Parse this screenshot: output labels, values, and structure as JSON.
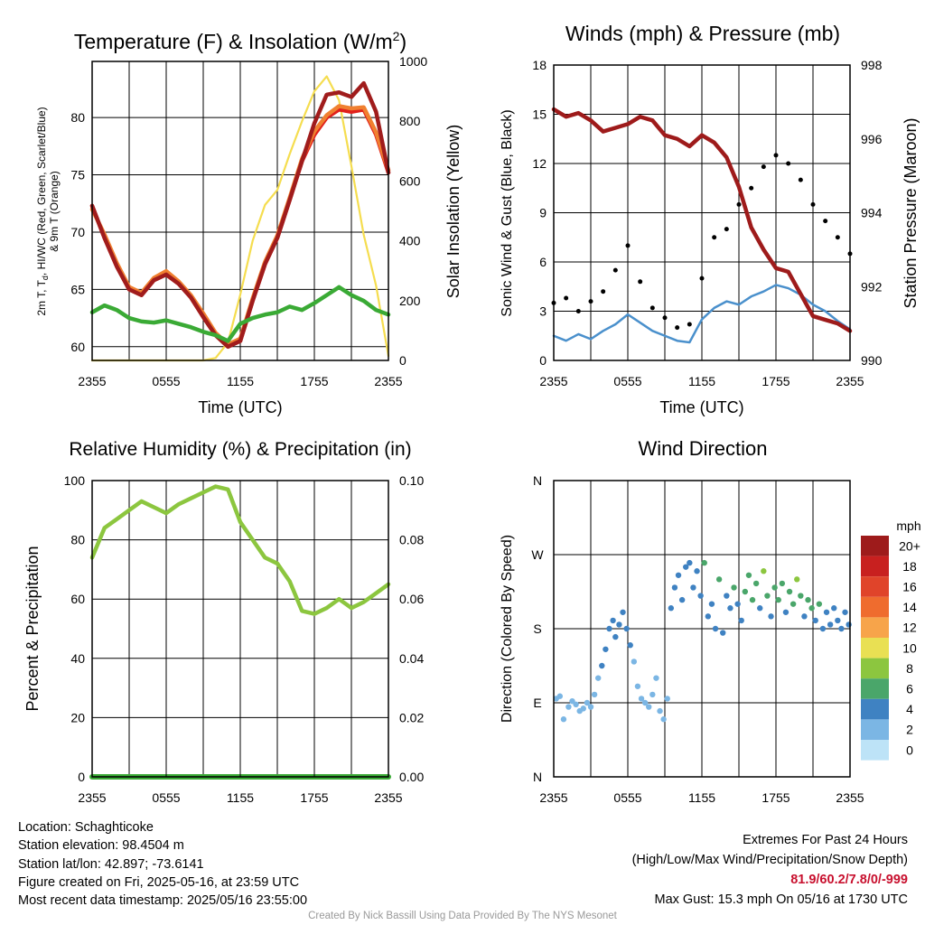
{
  "chart_data": [
    {
      "type": "line",
      "title": "Temperature (F) & Insolation (W/m²)",
      "xlabel": "Time (UTC)",
      "ylabel": "2m T, Td, HI/WC (Red, Green, Scarlet/Blue) & 9m T (Orange)",
      "ylabel_right": "Solar Insolation (Yellow)",
      "x_ticks": [
        "2355",
        "0555",
        "1155",
        "1755",
        "2355"
      ],
      "y_ticks": [
        60,
        65,
        70,
        75,
        80
      ],
      "y_right_ticks": [
        0,
        200,
        400,
        600,
        800,
        1000
      ],
      "ylim": [
        58.8,
        84.9
      ],
      "ylim_right": [
        0,
        1000
      ],
      "x": [
        0,
        1,
        2,
        3,
        4,
        5,
        6,
        7,
        8,
        9,
        10,
        11,
        12,
        13,
        14,
        15,
        16,
        17,
        18,
        19,
        20,
        21,
        22,
        23,
        24
      ],
      "series": [
        {
          "name": "2m T",
          "color": "#e0201b",
          "axis": "left",
          "values": [
            72.3,
            69.5,
            67,
            65,
            64.5,
            65.8,
            66.3,
            65.5,
            64.3,
            62.6,
            61,
            60,
            60.5,
            64,
            67.2,
            69.5,
            72.8,
            76.2,
            78.5,
            80,
            80.7,
            80.5,
            80.7,
            78.5,
            75.2
          ]
        },
        {
          "name": "9m T",
          "color": "#f08030",
          "axis": "left",
          "values": [
            72,
            69.8,
            67.3,
            65.2,
            64.7,
            66,
            66.6,
            65.7,
            64.5,
            62.9,
            61.2,
            60.2,
            60.7,
            64.2,
            67.4,
            69.7,
            73,
            76.4,
            78.8,
            80.2,
            81,
            80.8,
            80.9,
            78.7,
            75.4
          ]
        },
        {
          "name": "HI/WC",
          "color": "#a01c1c",
          "axis": "left",
          "values": [
            72.3,
            69.5,
            67,
            65,
            64.5,
            65.8,
            66.3,
            65.5,
            64.3,
            62.6,
            61,
            60,
            60.5,
            64,
            67.2,
            69.5,
            72.8,
            76.2,
            79.5,
            82,
            82.2,
            81.8,
            83,
            80.5,
            75.2
          ]
        },
        {
          "name": "Td",
          "color": "#3aaa35",
          "axis": "left",
          "values": [
            63,
            63.6,
            63.2,
            62.5,
            62.2,
            62.1,
            62.3,
            62,
            61.7,
            61.3,
            61,
            60.5,
            62,
            62.5,
            62.8,
            63,
            63.5,
            63.2,
            63.8,
            64.5,
            65.2,
            64.5,
            64,
            63.2,
            62.8
          ]
        },
        {
          "name": "Solar Insolation",
          "color": "#f5dd4f",
          "axis": "right",
          "values": [
            0,
            0,
            0,
            0,
            0,
            0,
            0,
            0,
            0,
            0,
            8,
            60,
            220,
            400,
            520,
            570,
            690,
            800,
            900,
            950,
            870,
            650,
            420,
            250,
            15
          ]
        }
      ]
    },
    {
      "type": "line",
      "title": "Winds (mph) & Pressure (mb)",
      "xlabel": "Time (UTC)",
      "ylabel": "Sonic Wind & Gust (Blue, Black)",
      "ylabel_right": "Station Pressure (Maroon)",
      "x_ticks": [
        "2355",
        "0555",
        "1155",
        "1755",
        "2355"
      ],
      "y_ticks": [
        0,
        3,
        6,
        9,
        12,
        15,
        18
      ],
      "y_right_ticks": [
        990,
        992,
        994,
        996,
        998
      ],
      "ylim": [
        0,
        18
      ],
      "ylim_right": [
        990,
        998
      ],
      "x": [
        0,
        1,
        2,
        3,
        4,
        5,
        6,
        7,
        8,
        9,
        10,
        11,
        12,
        13,
        14,
        15,
        16,
        17,
        18,
        19,
        20,
        21,
        22,
        23,
        24
      ],
      "series": [
        {
          "name": "Sonic Wind",
          "color": "#4a90cc",
          "axis": "left",
          "values": [
            1.5,
            1.2,
            1.6,
            1.3,
            1.8,
            2.2,
            2.8,
            2.3,
            1.8,
            1.5,
            1.2,
            1.1,
            2.5,
            3.2,
            3.6,
            3.4,
            3.9,
            4.2,
            4.6,
            4.4,
            4.0,
            3.4,
            3.0,
            2.4,
            1.9
          ]
        },
        {
          "name": "Gust",
          "color": "#000000",
          "axis": "left",
          "values": [
            3.5,
            3.8,
            3.0,
            3.6,
            4.2,
            5.5,
            7.0,
            4.8,
            3.2,
            2.6,
            2.0,
            2.2,
            5.0,
            7.5,
            8.0,
            9.5,
            10.5,
            11.8,
            12.5,
            12.0,
            11.0,
            9.5,
            8.5,
            7.5,
            6.5
          ]
        },
        {
          "name": "Station Pressure",
          "color": "#9e1b1b",
          "axis": "right",
          "values": [
            996.8,
            996.6,
            996.7,
            996.5,
            996.2,
            996.3,
            996.4,
            996.6,
            996.5,
            996.1,
            996.0,
            995.8,
            996.1,
            995.9,
            995.5,
            994.7,
            993.6,
            993.0,
            992.5,
            992.4,
            991.8,
            991.2,
            991.1,
            991.0,
            990.8
          ]
        }
      ]
    },
    {
      "type": "line",
      "title": "Relative Humidity (%) & Precipitation (in)",
      "xlabel": "",
      "ylabel": "Percent & Precipitation",
      "x_ticks": [
        "2355",
        "0555",
        "1155",
        "1755",
        "2355"
      ],
      "y_ticks": [
        0,
        20,
        40,
        60,
        80,
        100
      ],
      "y_right_ticks": [
        "0.00",
        "0.02",
        "0.04",
        "0.06",
        "0.08",
        "0.10"
      ],
      "ylim": [
        0,
        100
      ],
      "ylim_right": [
        0,
        0.1
      ],
      "x": [
        0,
        1,
        2,
        3,
        4,
        5,
        6,
        7,
        8,
        9,
        10,
        11,
        12,
        13,
        14,
        15,
        16,
        17,
        18,
        19,
        20,
        21,
        22,
        23,
        24
      ],
      "series": [
        {
          "name": "Relative Humidity",
          "color": "#8cc63f",
          "axis": "left",
          "values": [
            74,
            84,
            87,
            90,
            93,
            91,
            89,
            92,
            94,
            96,
            98,
            97,
            86,
            80,
            74,
            72,
            66,
            56,
            55,
            57,
            60,
            57,
            59,
            62,
            65
          ]
        },
        {
          "name": "Precipitation",
          "color": "#3aaa35",
          "axis": "right",
          "values": [
            0,
            0,
            0,
            0,
            0,
            0,
            0,
            0,
            0,
            0,
            0,
            0,
            0,
            0,
            0,
            0,
            0,
            0,
            0,
            0,
            0,
            0,
            0,
            0,
            0
          ]
        }
      ]
    },
    {
      "type": "scatter",
      "title": "Wind Direction",
      "xlabel": "",
      "ylabel": "Direction (Colored By Speed)",
      "x_ticks": [
        "2355",
        "0555",
        "1155",
        "1755",
        "2355"
      ],
      "y_tick_labels": [
        "N",
        "E",
        "S",
        "W",
        "N"
      ],
      "ylim": [
        0,
        360
      ],
      "legend_title": "mph",
      "legend_labels": [
        "20+",
        "18",
        "16",
        "14",
        "12",
        "10",
        "8",
        "6",
        "4",
        "2",
        "0"
      ],
      "legend_colors": [
        "#9e1b1b",
        "#c8201f",
        "#e0442a",
        "#ef6c2e",
        "#f7a44a",
        "#e9e053",
        "#8cc63f",
        "#4aa66a",
        "#3f82c2",
        "#7bb6e4",
        "#bde3f7"
      ],
      "points": [
        {
          "x": 0.2,
          "y": 95,
          "s": 1
        },
        {
          "x": 0.5,
          "y": 98,
          "s": 1
        },
        {
          "x": 0.8,
          "y": 70,
          "s": 1
        },
        {
          "x": 1.2,
          "y": 85,
          "s": 2
        },
        {
          "x": 1.5,
          "y": 92,
          "s": 1
        },
        {
          "x": 1.8,
          "y": 88,
          "s": 2
        },
        {
          "x": 2.1,
          "y": 80,
          "s": 1
        },
        {
          "x": 2.4,
          "y": 83,
          "s": 2
        },
        {
          "x": 2.7,
          "y": 90,
          "s": 1
        },
        {
          "x": 3.0,
          "y": 85,
          "s": 2
        },
        {
          "x": 3.3,
          "y": 100,
          "s": 2
        },
        {
          "x": 3.6,
          "y": 120,
          "s": 2
        },
        {
          "x": 3.9,
          "y": 135,
          "s": 3
        },
        {
          "x": 4.2,
          "y": 155,
          "s": 3
        },
        {
          "x": 4.5,
          "y": 180,
          "s": 3
        },
        {
          "x": 4.8,
          "y": 190,
          "s": 4
        },
        {
          "x": 5.0,
          "y": 170,
          "s": 3
        },
        {
          "x": 5.3,
          "y": 185,
          "s": 4
        },
        {
          "x": 5.6,
          "y": 200,
          "s": 3
        },
        {
          "x": 5.9,
          "y": 180,
          "s": 3
        },
        {
          "x": 6.2,
          "y": 160,
          "s": 3
        },
        {
          "x": 6.5,
          "y": 140,
          "s": 2
        },
        {
          "x": 6.8,
          "y": 110,
          "s": 1
        },
        {
          "x": 7.1,
          "y": 95,
          "s": 2
        },
        {
          "x": 7.4,
          "y": 90,
          "s": 2
        },
        {
          "x": 7.7,
          "y": 85,
          "s": 1
        },
        {
          "x": 8.0,
          "y": 100,
          "s": 2
        },
        {
          "x": 8.3,
          "y": 120,
          "s": 1
        },
        {
          "x": 8.6,
          "y": 80,
          "s": 2
        },
        {
          "x": 8.9,
          "y": 70,
          "s": 1
        },
        {
          "x": 9.2,
          "y": 95,
          "s": 1
        },
        {
          "x": 9.5,
          "y": 205,
          "s": 3
        },
        {
          "x": 9.8,
          "y": 230,
          "s": 4
        },
        {
          "x": 10.1,
          "y": 245,
          "s": 4
        },
        {
          "x": 10.4,
          "y": 215,
          "s": 3
        },
        {
          "x": 10.7,
          "y": 255,
          "s": 4
        },
        {
          "x": 11.0,
          "y": 260,
          "s": 4
        },
        {
          "x": 11.3,
          "y": 230,
          "s": 3
        },
        {
          "x": 11.6,
          "y": 250,
          "s": 4
        },
        {
          "x": 11.9,
          "y": 220,
          "s": 3
        },
        {
          "x": 12.2,
          "y": 260,
          "s": 5
        },
        {
          "x": 12.5,
          "y": 195,
          "s": 3
        },
        {
          "x": 12.8,
          "y": 210,
          "s": 4
        },
        {
          "x": 13.1,
          "y": 180,
          "s": 4
        },
        {
          "x": 13.4,
          "y": 240,
          "s": 5
        },
        {
          "x": 13.7,
          "y": 175,
          "s": 4
        },
        {
          "x": 14.0,
          "y": 220,
          "s": 4
        },
        {
          "x": 14.3,
          "y": 205,
          "s": 4
        },
        {
          "x": 14.6,
          "y": 230,
          "s": 5
        },
        {
          "x": 14.9,
          "y": 210,
          "s": 4
        },
        {
          "x": 15.2,
          "y": 190,
          "s": 4
        },
        {
          "x": 15.5,
          "y": 225,
          "s": 5
        },
        {
          "x": 15.8,
          "y": 245,
          "s": 6
        },
        {
          "x": 16.1,
          "y": 215,
          "s": 5
        },
        {
          "x": 16.4,
          "y": 235,
          "s": 6
        },
        {
          "x": 16.7,
          "y": 205,
          "s": 4
        },
        {
          "x": 17.0,
          "y": 250,
          "s": 7
        },
        {
          "x": 17.3,
          "y": 220,
          "s": 5
        },
        {
          "x": 17.6,
          "y": 195,
          "s": 4
        },
        {
          "x": 17.9,
          "y": 230,
          "s": 6
        },
        {
          "x": 18.2,
          "y": 215,
          "s": 5
        },
        {
          "x": 18.5,
          "y": 235,
          "s": 6
        },
        {
          "x": 18.8,
          "y": 200,
          "s": 4
        },
        {
          "x": 19.1,
          "y": 225,
          "s": 5
        },
        {
          "x": 19.4,
          "y": 210,
          "s": 5
        },
        {
          "x": 19.7,
          "y": 240,
          "s": 7
        },
        {
          "x": 20.0,
          "y": 220,
          "s": 5
        },
        {
          "x": 20.3,
          "y": 195,
          "s": 4
        },
        {
          "x": 20.6,
          "y": 215,
          "s": 5
        },
        {
          "x": 20.9,
          "y": 205,
          "s": 5
        },
        {
          "x": 21.2,
          "y": 190,
          "s": 4
        },
        {
          "x": 21.5,
          "y": 210,
          "s": 5
        },
        {
          "x": 21.8,
          "y": 180,
          "s": 4
        },
        {
          "x": 22.1,
          "y": 200,
          "s": 4
        },
        {
          "x": 22.4,
          "y": 185,
          "s": 4
        },
        {
          "x": 22.7,
          "y": 205,
          "s": 4
        },
        {
          "x": 23.0,
          "y": 190,
          "s": 4
        },
        {
          "x": 23.3,
          "y": 180,
          "s": 3
        },
        {
          "x": 23.6,
          "y": 200,
          "s": 4
        },
        {
          "x": 23.9,
          "y": 185,
          "s": 4
        }
      ]
    }
  ],
  "info": {
    "location": "Location: Schaghticoke",
    "elevation": "Station elevation: 98.4504 m",
    "latlon": "Station lat/lon: 42.897; -73.6141",
    "created": "Figure created on Fri, 2025-05-16, at 23:59 UTC",
    "recent": "Most recent data timestamp: 2025/05/16 23:55:00"
  },
  "extremes": {
    "title": "Extremes For Past 24 Hours",
    "legend": "(High/Low/Max Wind/Precipitation/Snow Depth)",
    "values": "81.9/60.2/7.8/0/-999",
    "gust": "Max Gust: 15.3 mph On 05/16 at 1730 UTC"
  },
  "credit": "Created By Nick Bassill Using Data Provided By The NYS Mesonet"
}
